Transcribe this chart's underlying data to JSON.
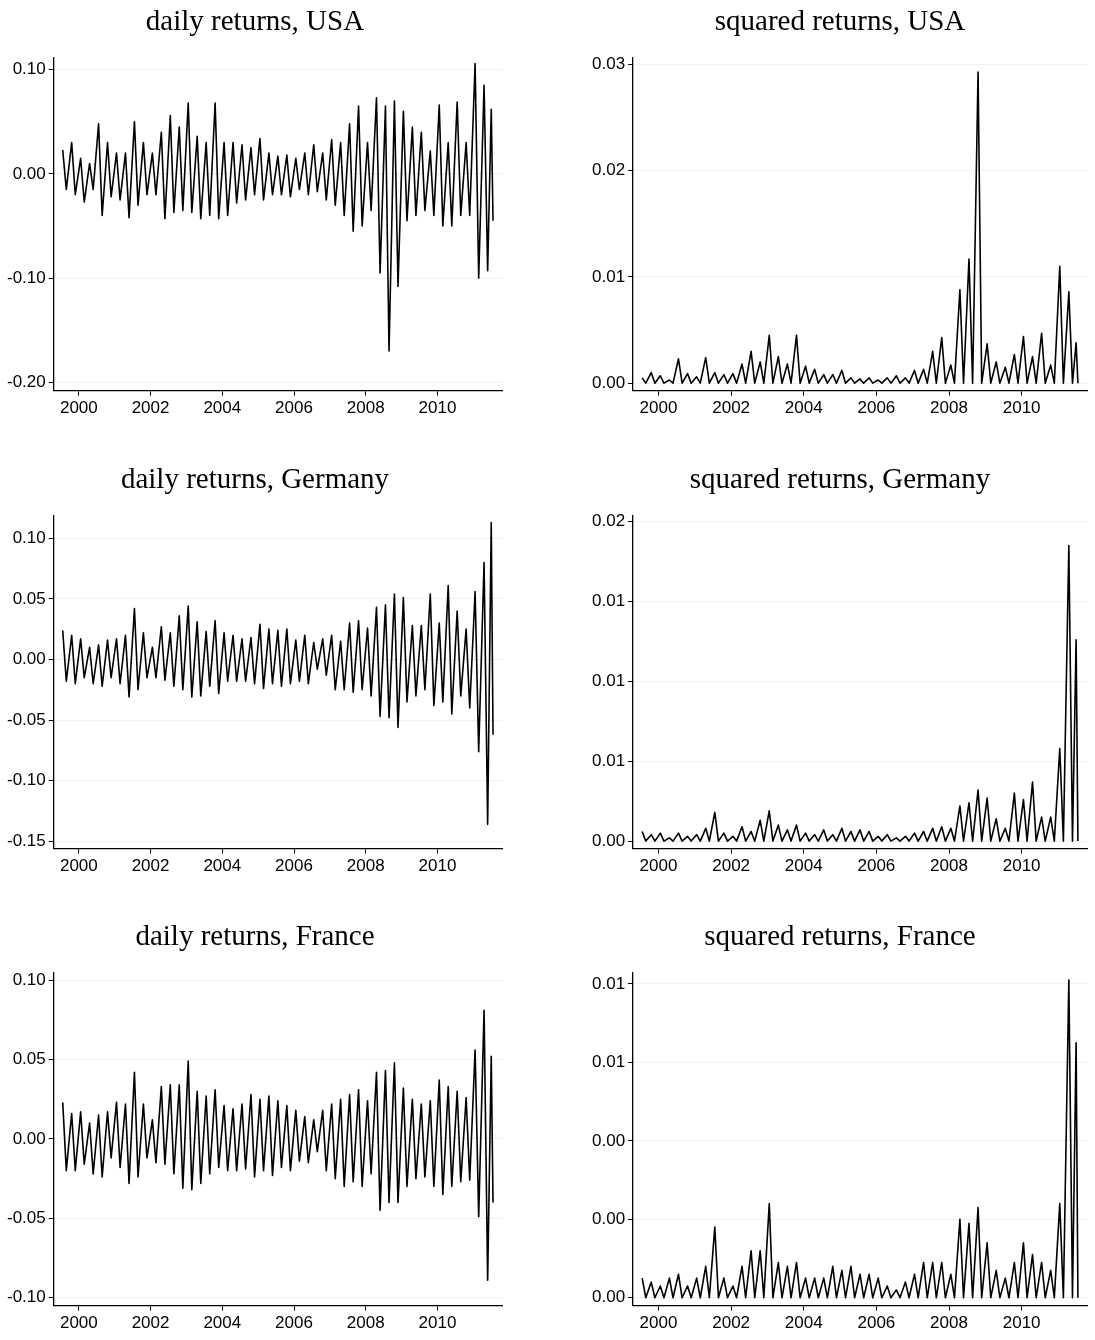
{
  "chart_data": [
    {
      "type": "line",
      "title": "daily returns, USA",
      "color": "#000000",
      "grid": "y",
      "xlim": [
        1999.3,
        2011.8
      ],
      "xticks": [
        2000,
        2002,
        2004,
        2006,
        2008,
        2010
      ],
      "ylim": [
        -0.208,
        0.112
      ],
      "yticks": [
        {
          "value": -0.2,
          "label": "-0.20"
        },
        {
          "value": -0.1,
          "label": "-0.10"
        },
        {
          "value": 0,
          "label": "0.00"
        },
        {
          "value": 0.1,
          "label": "0.10"
        }
      ],
      "x": [
        1999.55,
        1999.65,
        1999.8,
        1999.9,
        2000.05,
        2000.15,
        2000.3,
        2000.4,
        2000.55,
        2000.65,
        2000.8,
        2000.9,
        2001.05,
        2001.15,
        2001.3,
        2001.4,
        2001.55,
        2001.65,
        2001.8,
        2001.9,
        2002.05,
        2002.15,
        2002.3,
        2002.4,
        2002.55,
        2002.65,
        2002.8,
        2002.9,
        2003.05,
        2003.15,
        2003.3,
        2003.4,
        2003.55,
        2003.65,
        2003.8,
        2003.9,
        2004.05,
        2004.15,
        2004.3,
        2004.4,
        2004.55,
        2004.65,
        2004.8,
        2004.9,
        2005.05,
        2005.15,
        2005.3,
        2005.4,
        2005.55,
        2005.65,
        2005.8,
        2005.9,
        2006.05,
        2006.15,
        2006.3,
        2006.4,
        2006.55,
        2006.65,
        2006.8,
        2006.9,
        2007.05,
        2007.15,
        2007.3,
        2007.4,
        2007.55,
        2007.65,
        2007.8,
        2007.9,
        2008.05,
        2008.15,
        2008.3,
        2008.4,
        2008.55,
        2008.65,
        2008.8,
        2008.9,
        2009.05,
        2009.15,
        2009.3,
        2009.4,
        2009.55,
        2009.65,
        2009.8,
        2009.9,
        2010.05,
        2010.15,
        2010.3,
        2010.4,
        2010.55,
        2010.65,
        2010.8,
        2010.9,
        2011.05,
        2011.15,
        2011.3,
        2011.4,
        2011.5,
        2011.55
      ],
      "values": [
        0.023,
        -0.015,
        0.03,
        -0.02,
        0.015,
        -0.027,
        0.01,
        -0.015,
        0.048,
        -0.04,
        0.03,
        -0.022,
        0.02,
        -0.025,
        0.02,
        -0.042,
        0.05,
        -0.03,
        0.03,
        -0.02,
        0.02,
        -0.02,
        0.04,
        -0.043,
        0.056,
        -0.037,
        0.045,
        -0.035,
        0.068,
        -0.037,
        0.036,
        -0.043,
        0.03,
        -0.04,
        0.068,
        -0.043,
        0.03,
        -0.04,
        0.03,
        -0.028,
        0.028,
        -0.025,
        0.025,
        -0.02,
        0.034,
        -0.025,
        0.02,
        -0.02,
        0.017,
        -0.02,
        0.018,
        -0.022,
        0.015,
        -0.015,
        0.02,
        -0.02,
        0.028,
        -0.017,
        0.02,
        -0.025,
        0.033,
        -0.03,
        0.03,
        -0.04,
        0.048,
        -0.055,
        0.065,
        -0.05,
        0.03,
        -0.035,
        0.073,
        -0.095,
        0.065,
        -0.17,
        0.07,
        -0.108,
        0.06,
        -0.045,
        0.045,
        -0.04,
        0.04,
        -0.035,
        0.022,
        -0.04,
        0.066,
        -0.05,
        0.03,
        -0.05,
        0.069,
        -0.04,
        0.03,
        -0.04,
        0.106,
        -0.1,
        0.085,
        -0.093,
        0.062,
        -0.045
      ]
    },
    {
      "type": "line",
      "title": "squared returns, USA",
      "color": "#000000",
      "grid": "y",
      "xlim": [
        1999.3,
        2011.8
      ],
      "xticks": [
        2000,
        2002,
        2004,
        2006,
        2008,
        2010
      ],
      "ylim": [
        -0.0007,
        0.0307
      ],
      "yticks": [
        {
          "value": 0,
          "label": "0.00"
        },
        {
          "value": 0.01,
          "label": "0.01"
        },
        {
          "value": 0.02,
          "label": "0.02"
        },
        {
          "value": 0.03,
          "label": "0.03"
        }
      ],
      "x": [
        1999.55,
        1999.65,
        1999.8,
        1999.9,
        2000.05,
        2000.15,
        2000.3,
        2000.4,
        2000.55,
        2000.65,
        2000.8,
        2000.9,
        2001.05,
        2001.15,
        2001.3,
        2001.4,
        2001.55,
        2001.65,
        2001.8,
        2001.9,
        2002.05,
        2002.15,
        2002.3,
        2002.4,
        2002.55,
        2002.65,
        2002.8,
        2002.9,
        2003.05,
        2003.15,
        2003.3,
        2003.4,
        2003.55,
        2003.65,
        2003.8,
        2003.9,
        2004.05,
        2004.15,
        2004.3,
        2004.4,
        2004.55,
        2004.65,
        2004.8,
        2004.9,
        2005.05,
        2005.15,
        2005.3,
        2005.4,
        2005.55,
        2005.65,
        2005.8,
        2005.9,
        2006.05,
        2006.15,
        2006.3,
        2006.4,
        2006.55,
        2006.65,
        2006.8,
        2006.9,
        2007.05,
        2007.15,
        2007.3,
        2007.4,
        2007.55,
        2007.65,
        2007.8,
        2007.9,
        2008.05,
        2008.15,
        2008.3,
        2008.4,
        2008.55,
        2008.65,
        2008.8,
        2008.9,
        2009.05,
        2009.15,
        2009.3,
        2009.4,
        2009.55,
        2009.65,
        2009.8,
        2009.9,
        2010.05,
        2010.15,
        2010.3,
        2010.4,
        2010.55,
        2010.65,
        2010.8,
        2010.9,
        2011.05,
        2011.15,
        2011.3,
        2011.4,
        2011.5,
        2011.55
      ],
      "values": [
        0.0005,
        0,
        0.001,
        0,
        0.0007,
        0,
        0.0003,
        0,
        0.0023,
        0,
        0.0009,
        0,
        0.0006,
        0,
        0.0024,
        0,
        0.001,
        0,
        0.0008,
        0,
        0.0009,
        0,
        0.0018,
        0,
        0.003,
        0,
        0.002,
        0,
        0.0045,
        0,
        0.0025,
        0,
        0.0018,
        0,
        0.0045,
        0,
        0.0016,
        0,
        0.0013,
        0,
        0.0008,
        0,
        0.0008,
        0,
        0.0012,
        0,
        0.0005,
        0,
        0.0004,
        0,
        0.0005,
        0,
        0.0003,
        0,
        0.0005,
        0,
        0.0007,
        0,
        0.0005,
        0,
        0.0012,
        0,
        0.0013,
        0,
        0.003,
        0,
        0.0043,
        0,
        0.0017,
        0,
        0.0088,
        0,
        0.0117,
        0,
        0.0293,
        0,
        0.0037,
        0,
        0.002,
        0,
        0.0015,
        0,
        0.0027,
        0,
        0.0044,
        0,
        0.0025,
        0,
        0.0047,
        0,
        0.0017,
        0,
        0.011,
        0,
        0.0086,
        0,
        0.0038,
        0
      ]
    },
    {
      "type": "line",
      "title": "daily returns, Germany",
      "color": "#000000",
      "grid": "y",
      "xlim": [
        1999.3,
        2011.8
      ],
      "xticks": [
        2000,
        2002,
        2004,
        2006,
        2008,
        2010
      ],
      "ylim": [
        -0.156,
        0.119
      ],
      "yticks": [
        {
          "value": -0.15,
          "label": "-0.15"
        },
        {
          "value": -0.1,
          "label": "-0.10"
        },
        {
          "value": -0.05,
          "label": "-0.05"
        },
        {
          "value": 0,
          "label": "0.00"
        },
        {
          "value": 0.05,
          "label": "0.05"
        },
        {
          "value": 0.1,
          "label": "0.10"
        }
      ],
      "x": [
        1999.55,
        1999.65,
        1999.8,
        1999.9,
        2000.05,
        2000.15,
        2000.3,
        2000.4,
        2000.55,
        2000.65,
        2000.8,
        2000.9,
        2001.05,
        2001.15,
        2001.3,
        2001.4,
        2001.55,
        2001.65,
        2001.8,
        2001.9,
        2002.05,
        2002.15,
        2002.3,
        2002.4,
        2002.55,
        2002.65,
        2002.8,
        2002.9,
        2003.05,
        2003.15,
        2003.3,
        2003.4,
        2003.55,
        2003.65,
        2003.8,
        2003.9,
        2004.05,
        2004.15,
        2004.3,
        2004.4,
        2004.55,
        2004.65,
        2004.8,
        2004.9,
        2005.05,
        2005.15,
        2005.3,
        2005.4,
        2005.55,
        2005.65,
        2005.8,
        2005.9,
        2006.05,
        2006.15,
        2006.3,
        2006.4,
        2006.55,
        2006.65,
        2006.8,
        2006.9,
        2007.05,
        2007.15,
        2007.3,
        2007.4,
        2007.55,
        2007.65,
        2007.8,
        2007.9,
        2008.05,
        2008.15,
        2008.3,
        2008.4,
        2008.55,
        2008.65,
        2008.8,
        2008.9,
        2009.05,
        2009.15,
        2009.3,
        2009.4,
        2009.55,
        2009.65,
        2009.8,
        2009.9,
        2010.05,
        2010.15,
        2010.3,
        2010.4,
        2010.55,
        2010.65,
        2010.8,
        2010.9,
        2011.05,
        2011.15,
        2011.3,
        2011.4,
        2011.5,
        2011.55
      ],
      "values": [
        0.024,
        -0.018,
        0.02,
        -0.02,
        0.017,
        -0.015,
        0.01,
        -0.02,
        0.012,
        -0.022,
        0.016,
        -0.015,
        0.017,
        -0.02,
        0.02,
        -0.031,
        0.042,
        -0.025,
        0.022,
        -0.015,
        0.01,
        -0.015,
        0.027,
        -0.017,
        0.022,
        -0.022,
        0.036,
        -0.025,
        0.044,
        -0.031,
        0.031,
        -0.03,
        0.023,
        -0.022,
        0.032,
        -0.028,
        0.022,
        -0.018,
        0.02,
        -0.018,
        0.017,
        -0.018,
        0.018,
        -0.02,
        0.029,
        -0.024,
        0.025,
        -0.02,
        0.024,
        -0.022,
        0.025,
        -0.02,
        0.016,
        -0.018,
        0.02,
        -0.02,
        0.014,
        -0.008,
        0.017,
        -0.013,
        0.02,
        -0.025,
        0.015,
        -0.025,
        0.03,
        -0.027,
        0.032,
        -0.025,
        0.026,
        -0.03,
        0.043,
        -0.047,
        0.045,
        -0.048,
        0.054,
        -0.056,
        0.051,
        -0.035,
        0.028,
        -0.03,
        0.028,
        -0.025,
        0.054,
        -0.038,
        0.03,
        -0.035,
        0.061,
        -0.045,
        0.04,
        -0.03,
        0.025,
        -0.04,
        0.056,
        -0.076,
        0.08,
        -0.136,
        0.113,
        -0.062
      ]
    },
    {
      "type": "line",
      "title": "squared returns, Germany",
      "color": "#000000",
      "grid": "y",
      "xlim": [
        1999.3,
        2011.8
      ],
      "xticks": [
        2000,
        2002,
        2004,
        2006,
        2008,
        2010
      ],
      "ylim": [
        -0.00047,
        0.0204
      ],
      "yticks": [
        {
          "value": 0,
          "label": "0.00"
        },
        {
          "value": 0.005,
          "label": "0.01"
        },
        {
          "value": 0.01,
          "label": "0.01"
        },
        {
          "value": 0.015,
          "label": "0.01"
        },
        {
          "value": 0.02,
          "label": "0.02"
        }
      ],
      "x": [
        1999.55,
        1999.65,
        1999.8,
        1999.9,
        2000.05,
        2000.15,
        2000.3,
        2000.4,
        2000.55,
        2000.65,
        2000.8,
        2000.9,
        2001.05,
        2001.15,
        2001.3,
        2001.4,
        2001.55,
        2001.65,
        2001.8,
        2001.9,
        2002.05,
        2002.15,
        2002.3,
        2002.4,
        2002.55,
        2002.65,
        2002.8,
        2002.9,
        2003.05,
        2003.15,
        2003.3,
        2003.4,
        2003.55,
        2003.65,
        2003.8,
        2003.9,
        2004.05,
        2004.15,
        2004.3,
        2004.4,
        2004.55,
        2004.65,
        2004.8,
        2004.9,
        2005.05,
        2005.15,
        2005.3,
        2005.4,
        2005.55,
        2005.65,
        2005.8,
        2005.9,
        2006.05,
        2006.15,
        2006.3,
        2006.4,
        2006.55,
        2006.65,
        2006.8,
        2006.9,
        2007.05,
        2007.15,
        2007.3,
        2007.4,
        2007.55,
        2007.65,
        2007.8,
        2007.9,
        2008.05,
        2008.15,
        2008.3,
        2008.4,
        2008.55,
        2008.65,
        2008.8,
        2008.9,
        2009.05,
        2009.15,
        2009.3,
        2009.4,
        2009.55,
        2009.65,
        2009.8,
        2009.9,
        2010.05,
        2010.15,
        2010.3,
        2010.4,
        2010.55,
        2010.65,
        2010.8,
        2010.9,
        2011.05,
        2011.15,
        2011.3,
        2011.4,
        2011.5,
        2011.55
      ],
      "values": [
        0.0006,
        0,
        0.0004,
        0,
        0.0005,
        0,
        0.0002,
        0,
        0.0005,
        0,
        0.0003,
        0,
        0.0004,
        0,
        0.0008,
        0,
        0.0018,
        0,
        0.0005,
        0,
        0.0003,
        0,
        0.0009,
        0,
        0.0006,
        0,
        0.0013,
        0,
        0.0019,
        0,
        0.001,
        0,
        0.0007,
        0,
        0.001,
        0,
        0.0005,
        0,
        0.0004,
        0,
        0.0007,
        0,
        0.0004,
        0,
        0.0008,
        0,
        0.0006,
        0,
        0.0007,
        0,
        0.0006,
        0,
        0.0003,
        0,
        0.0004,
        0,
        0.0002,
        0,
        0.0003,
        0,
        0.0005,
        0,
        0.0006,
        0,
        0.0008,
        0,
        0.0009,
        0,
        0.0008,
        0,
        0.0022,
        0,
        0.0024,
        0,
        0.0032,
        0,
        0.0027,
        0,
        0.0014,
        0,
        0.0008,
        0,
        0.003,
        0,
        0.0026,
        0,
        0.0037,
        0,
        0.0015,
        0,
        0.0015,
        0,
        0.0058,
        0,
        0.0185,
        0,
        0.0126,
        0
      ]
    },
    {
      "type": "line",
      "title": "daily returns, France",
      "color": "#000000",
      "grid": "y",
      "xlim": [
        1999.3,
        2011.8
      ],
      "xticks": [
        2000,
        2002,
        2004,
        2006,
        2008,
        2010
      ],
      "ylim": [
        -0.105,
        0.105
      ],
      "yticks": [
        {
          "value": -0.1,
          "label": "-0.10"
        },
        {
          "value": -0.05,
          "label": "-0.05"
        },
        {
          "value": 0,
          "label": "0.00"
        },
        {
          "value": 0.05,
          "label": "0.05"
        },
        {
          "value": 0.1,
          "label": "0.10"
        }
      ],
      "x": [
        1999.55,
        1999.65,
        1999.8,
        1999.9,
        2000.05,
        2000.15,
        2000.3,
        2000.4,
        2000.55,
        2000.65,
        2000.8,
        2000.9,
        2001.05,
        2001.15,
        2001.3,
        2001.4,
        2001.55,
        2001.65,
        2001.8,
        2001.9,
        2002.05,
        2002.15,
        2002.3,
        2002.4,
        2002.55,
        2002.65,
        2002.8,
        2002.9,
        2003.05,
        2003.15,
        2003.3,
        2003.4,
        2003.55,
        2003.65,
        2003.8,
        2003.9,
        2004.05,
        2004.15,
        2004.3,
        2004.4,
        2004.55,
        2004.65,
        2004.8,
        2004.9,
        2005.05,
        2005.15,
        2005.3,
        2005.4,
        2005.55,
        2005.65,
        2005.8,
        2005.9,
        2006.05,
        2006.15,
        2006.3,
        2006.4,
        2006.55,
        2006.65,
        2006.8,
        2006.9,
        2007.05,
        2007.15,
        2007.3,
        2007.4,
        2007.55,
        2007.65,
        2007.8,
        2007.9,
        2008.05,
        2008.15,
        2008.3,
        2008.4,
        2008.55,
        2008.65,
        2008.8,
        2008.9,
        2009.05,
        2009.15,
        2009.3,
        2009.4,
        2009.55,
        2009.65,
        2009.8,
        2009.9,
        2010.05,
        2010.15,
        2010.3,
        2010.4,
        2010.55,
        2010.65,
        2010.8,
        2010.9,
        2011.05,
        2011.15,
        2011.3,
        2011.4,
        2011.5,
        2011.55
      ],
      "values": [
        0.023,
        -0.02,
        0.016,
        -0.02,
        0.017,
        -0.016,
        0.01,
        -0.022,
        0.015,
        -0.024,
        0.017,
        -0.012,
        0.023,
        -0.018,
        0.022,
        -0.028,
        0.042,
        -0.024,
        0.022,
        -0.012,
        0.012,
        -0.015,
        0.033,
        -0.016,
        0.034,
        -0.022,
        0.034,
        -0.031,
        0.049,
        -0.032,
        0.03,
        -0.028,
        0.027,
        -0.022,
        0.031,
        -0.018,
        0.021,
        -0.02,
        0.019,
        -0.02,
        0.022,
        -0.019,
        0.028,
        -0.024,
        0.025,
        -0.02,
        0.027,
        -0.023,
        0.024,
        -0.018,
        0.021,
        -0.02,
        0.018,
        -0.014,
        0.014,
        -0.015,
        0.012,
        -0.008,
        0.018,
        -0.02,
        0.022,
        -0.025,
        0.025,
        -0.03,
        0.028,
        -0.027,
        0.031,
        -0.03,
        0.024,
        -0.022,
        0.042,
        -0.045,
        0.043,
        -0.04,
        0.048,
        -0.04,
        0.032,
        -0.03,
        0.025,
        -0.025,
        0.022,
        -0.024,
        0.024,
        -0.03,
        0.037,
        -0.035,
        0.033,
        -0.03,
        0.03,
        -0.027,
        0.026,
        -0.026,
        0.056,
        -0.049,
        0.081,
        -0.089,
        0.052,
        -0.04
      ]
    },
    {
      "type": "line",
      "title": "squared returns, France",
      "color": "#000000",
      "grid": "y",
      "xlim": [
        1999.3,
        2011.8
      ],
      "xticks": [
        2000,
        2002,
        2004,
        2006,
        2008,
        2010
      ],
      "ylim": [
        -0.0002,
        0.0083
      ],
      "yticks": [
        {
          "value": 0,
          "label": "0.00"
        },
        {
          "value": 0.002,
          "label": "0.00"
        },
        {
          "value": 0.004,
          "label": "0.00"
        },
        {
          "value": 0.006,
          "label": "0.01"
        },
        {
          "value": 0.008,
          "label": "0.01"
        }
      ],
      "x": [
        1999.55,
        1999.65,
        1999.8,
        1999.9,
        2000.05,
        2000.15,
        2000.3,
        2000.4,
        2000.55,
        2000.65,
        2000.8,
        2000.9,
        2001.05,
        2001.15,
        2001.3,
        2001.4,
        2001.55,
        2001.65,
        2001.8,
        2001.9,
        2002.05,
        2002.15,
        2002.3,
        2002.4,
        2002.55,
        2002.65,
        2002.8,
        2002.9,
        2003.05,
        2003.15,
        2003.3,
        2003.4,
        2003.55,
        2003.65,
        2003.8,
        2003.9,
        2004.05,
        2004.15,
        2004.3,
        2004.4,
        2004.55,
        2004.65,
        2004.8,
        2004.9,
        2005.05,
        2005.15,
        2005.3,
        2005.4,
        2005.55,
        2005.65,
        2005.8,
        2005.9,
        2006.05,
        2006.15,
        2006.3,
        2006.4,
        2006.55,
        2006.65,
        2006.8,
        2006.9,
        2007.05,
        2007.15,
        2007.3,
        2007.4,
        2007.55,
        2007.65,
        2007.8,
        2007.9,
        2008.05,
        2008.15,
        2008.3,
        2008.4,
        2008.55,
        2008.65,
        2008.8,
        2008.9,
        2009.05,
        2009.15,
        2009.3,
        2009.4,
        2009.55,
        2009.65,
        2009.8,
        2009.9,
        2010.05,
        2010.15,
        2010.3,
        2010.4,
        2010.55,
        2010.65,
        2010.8,
        2010.9,
        2011.05,
        2011.15,
        2011.3,
        2011.4,
        2011.5,
        2011.55
      ],
      "values": [
        0.0005,
        0,
        0.0004,
        0,
        0.0003,
        0,
        0.0005,
        0,
        0.0006,
        0,
        0.0003,
        0,
        0.0005,
        0,
        0.0008,
        0,
        0.0018,
        0,
        0.0005,
        0,
        0.0003,
        0,
        0.0008,
        0,
        0.0012,
        0,
        0.0012,
        0,
        0.0024,
        0,
        0.0009,
        0,
        0.0008,
        0,
        0.0009,
        0,
        0.0005,
        0,
        0.0005,
        0,
        0.0005,
        0,
        0.0008,
        0,
        0.0007,
        0,
        0.0008,
        0,
        0.0006,
        0,
        0.0006,
        0,
        0.0005,
        0,
        0.0003,
        0,
        0.0002,
        0,
        0.0004,
        0,
        0.0006,
        0,
        0.0009,
        0,
        0.0009,
        0,
        0.0009,
        0,
        0.0006,
        0,
        0.002,
        0,
        0.0019,
        0,
        0.0023,
        0,
        0.0014,
        0,
        0.0007,
        0,
        0.0005,
        0,
        0.0009,
        0,
        0.0014,
        0,
        0.0011,
        0,
        0.0009,
        0,
        0.0007,
        0,
        0.0024,
        0,
        0.0081,
        0,
        0.0065,
        0
      ]
    }
  ]
}
